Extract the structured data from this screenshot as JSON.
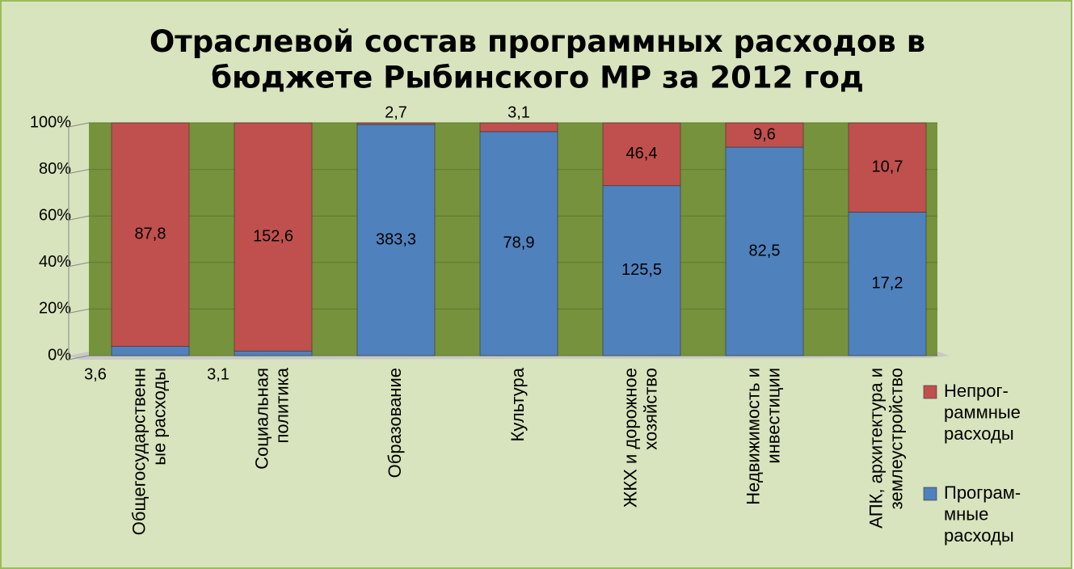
{
  "chart_data": {
    "type": "bar",
    "stacking": "percent",
    "title": "Отраслевой состав программных расходов в\nбюджете Рыбинского МР за 2012 год",
    "categories": [
      "Общегосударственн\nые расходы",
      "Социальная\nполитика",
      "Образование",
      "Культура",
      "ЖКХ и дорожное\nхозяйство",
      "Недвижимость и\nинвестиции",
      "АПК, архитектура и\nземлеустройство"
    ],
    "series": [
      {
        "name": "Програм-\nмные\nрасходы",
        "color": "#4f81bd",
        "values": [
          3.6,
          3.1,
          383.3,
          78.9,
          125.5,
          82.5,
          17.2
        ],
        "value_labels": [
          "3,6",
          "3,1",
          "383,3",
          "78,9",
          "125,5",
          "82,5",
          "17,2"
        ]
      },
      {
        "name": "Непрог-\nраммные\nрасходы",
        "color": "#c0504d",
        "values": [
          87.8,
          152.6,
          2.7,
          3.1,
          46.4,
          9.6,
          10.7
        ],
        "value_labels": [
          "87,8",
          "152,6",
          "2,7",
          "3,1",
          "46,4",
          "9,6",
          "10,7"
        ]
      }
    ],
    "ylim": [
      0,
      100
    ],
    "yticks": [
      {
        "value": 0,
        "label": "0%"
      },
      {
        "value": 20,
        "label": "20%"
      },
      {
        "value": 40,
        "label": "40%"
      },
      {
        "value": 60,
        "label": "60%"
      },
      {
        "value": 80,
        "label": "80%"
      },
      {
        "value": 100,
        "label": "100%"
      }
    ],
    "grid": true,
    "legend": "right"
  }
}
